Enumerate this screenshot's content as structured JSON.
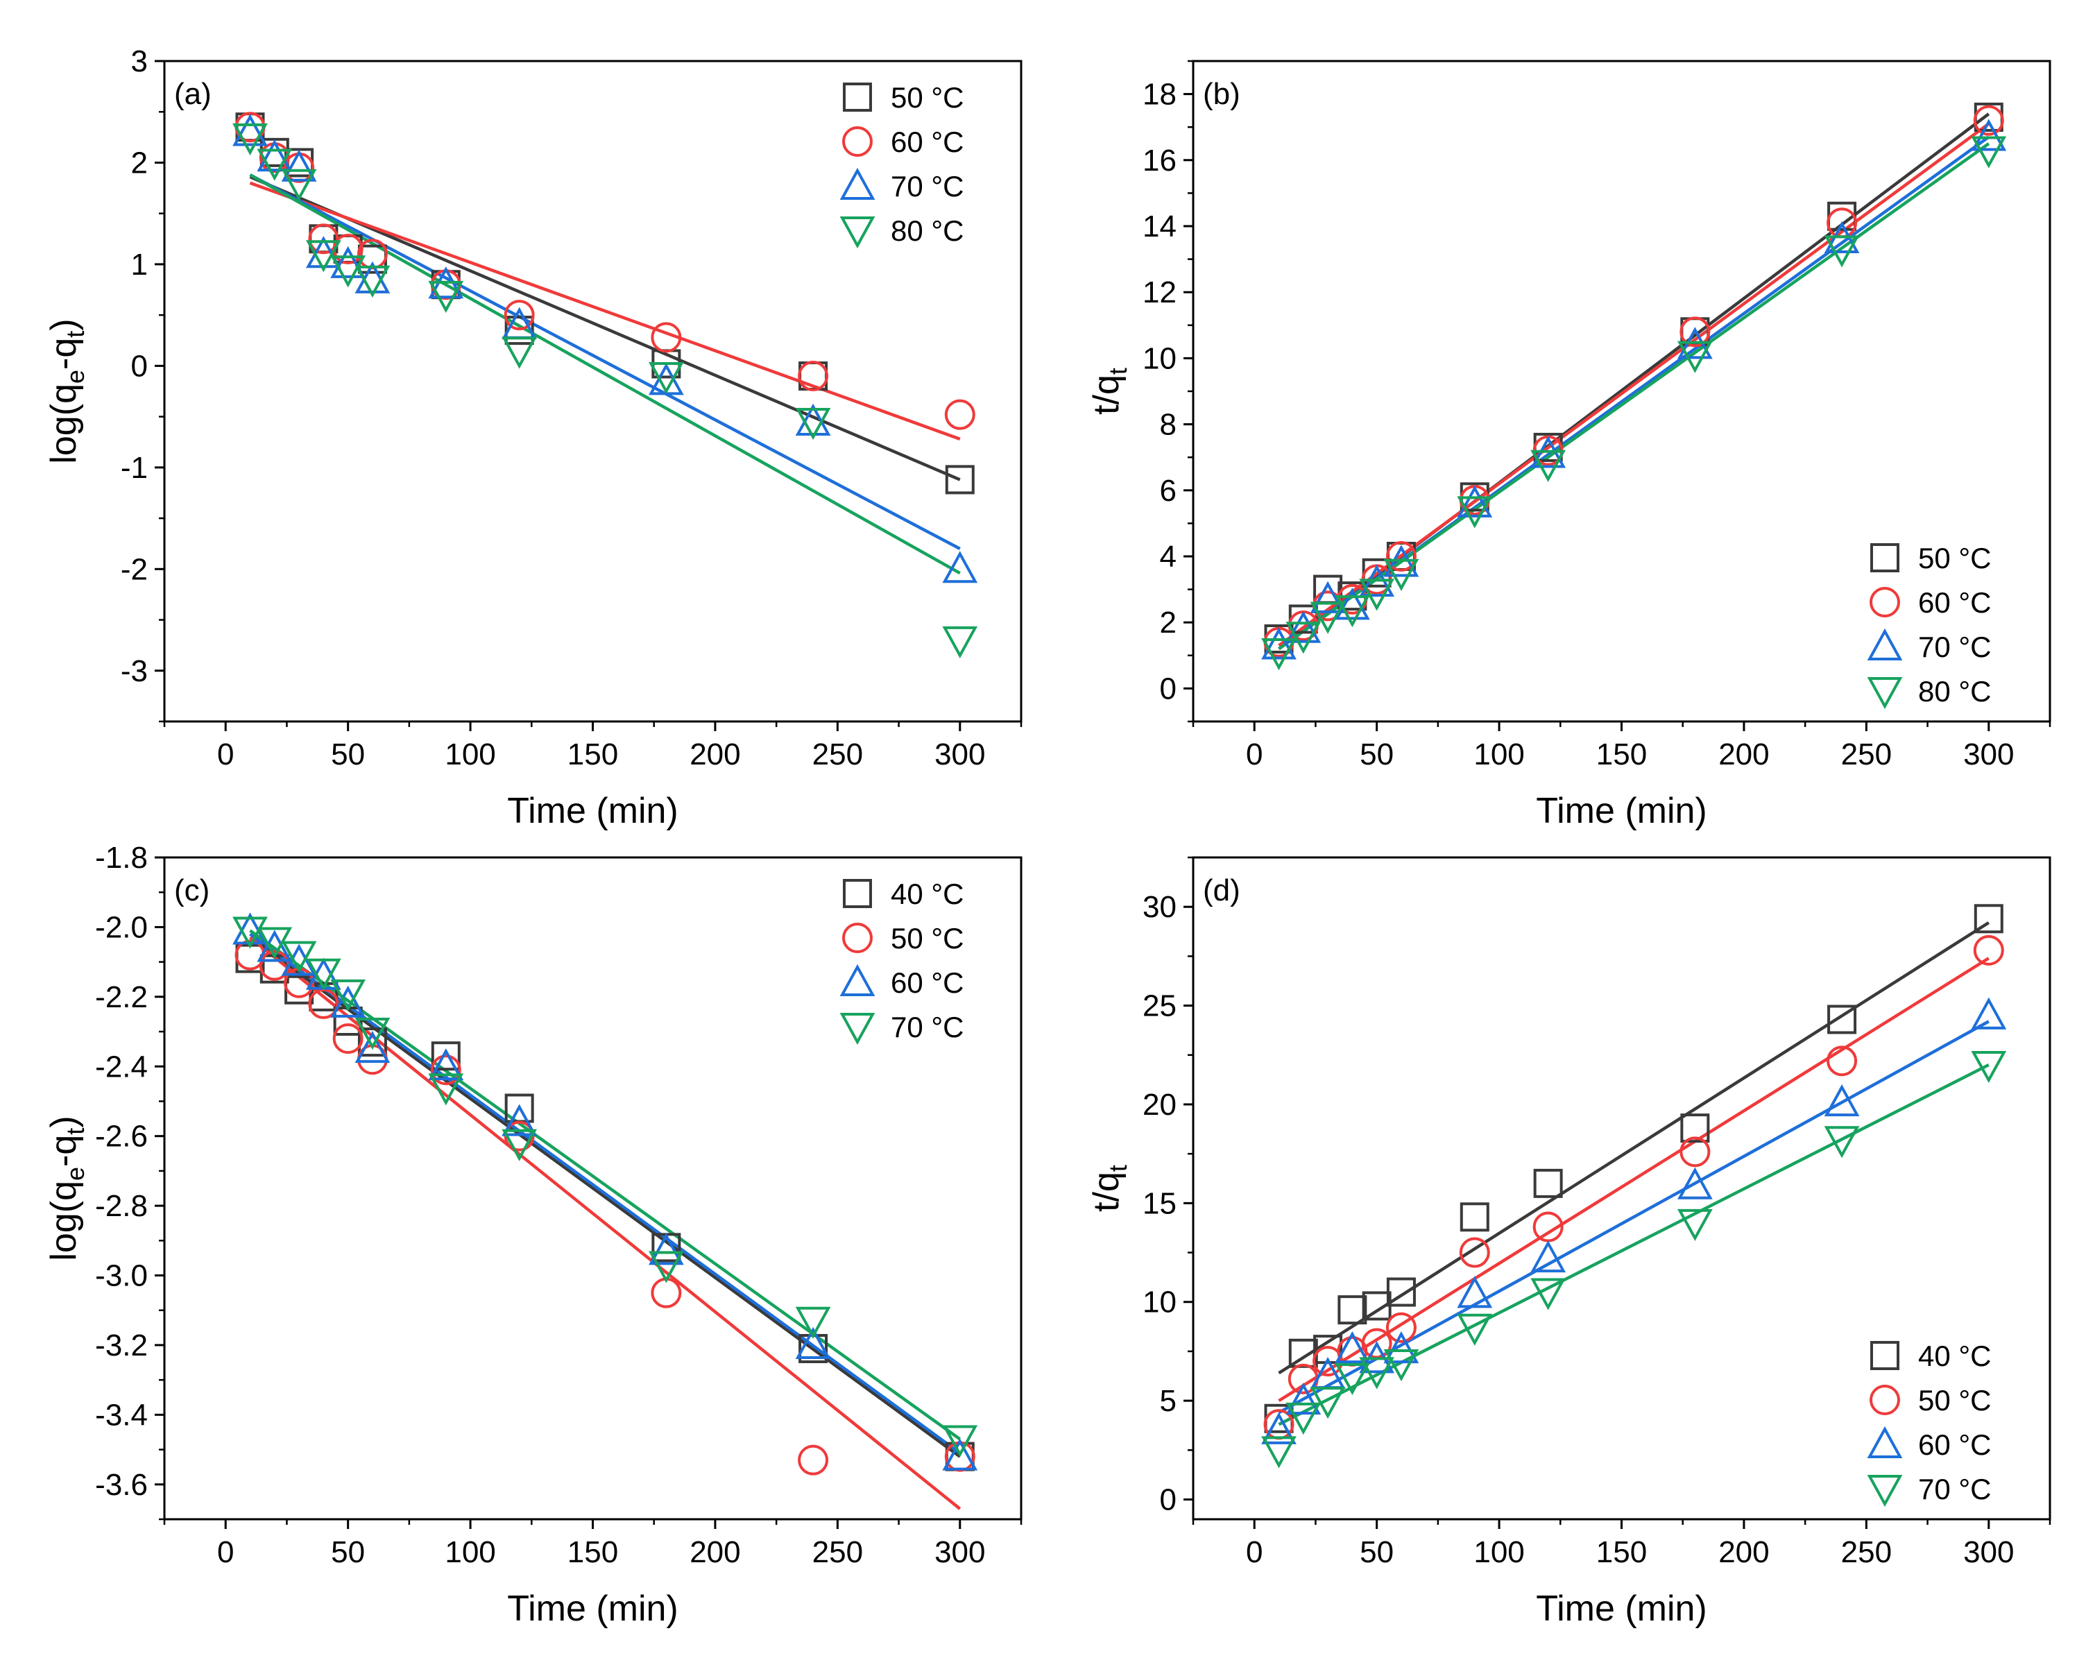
{
  "figure": {
    "panel_count": 4
  },
  "chart_data": [
    {
      "panel_label": "(a)",
      "type": "scatter",
      "xlabel": "Time (min)",
      "ylabel": {
        "base": "log(q",
        "sub1": "e",
        "mid": "-q",
        "sub2": "t",
        "end": ")"
      },
      "xlim": [
        -25,
        325
      ],
      "ylim": [
        -3.5,
        3
      ],
      "xticks": [
        0,
        50,
        100,
        150,
        200,
        250,
        300
      ],
      "xtick_labels": [
        "0",
        "50",
        "100",
        "150",
        "200",
        "250",
        "300"
      ],
      "yticks": [
        -3,
        -2,
        -1,
        0,
        1,
        2,
        3
      ],
      "ytick_labels": [
        "-3",
        "-2",
        "-1",
        "0",
        "1",
        "2",
        "3"
      ],
      "y_minor_step": 0.5,
      "legend_position": "top-right",
      "x": [
        10,
        20,
        30,
        40,
        50,
        60,
        90,
        120,
        180,
        240,
        300
      ],
      "series": [
        {
          "name": "50 °C",
          "label_num": "50",
          "label_unit": "°C",
          "marker": "square",
          "color": "#3a3a3a",
          "values": [
            2.35,
            2.1,
            2.0,
            1.25,
            1.15,
            1.05,
            0.8,
            0.35,
            0.02,
            -0.1,
            -1.12
          ],
          "fit": [
            1.86,
            -1.12
          ]
        },
        {
          "name": "60 °C",
          "label_num": "60",
          "label_unit": "°C",
          "marker": "circle",
          "color": "#f03a3a",
          "values": [
            2.35,
            2.05,
            1.95,
            1.25,
            1.15,
            1.1,
            0.8,
            0.5,
            0.28,
            -0.1,
            -0.48
          ],
          "fit": [
            1.8,
            -0.72
          ]
        },
        {
          "name": "70 °C",
          "label_num": "70",
          "label_unit": "°C",
          "marker": "triangle-up",
          "color": "#1e6fd9",
          "values": [
            2.3,
            2.05,
            1.95,
            1.1,
            1.0,
            0.85,
            0.8,
            0.4,
            -0.15,
            -0.55,
            -2.0
          ],
          "fit": [
            1.88,
            -1.8
          ]
        },
        {
          "name": "80 °C",
          "label_num": "80",
          "label_unit": "°C",
          "marker": "triangle-down",
          "color": "#17a35e",
          "values": [
            2.25,
            2.0,
            1.8,
            1.1,
            0.95,
            0.85,
            0.7,
            0.15,
            -0.1,
            -0.55,
            -2.7
          ],
          "fit": [
            1.88,
            -2.04
          ]
        }
      ]
    },
    {
      "panel_label": "(b)",
      "type": "scatter",
      "xlabel": "Time (min)",
      "ylabel": {
        "base": "t/q",
        "sub1": "t",
        "mid": "",
        "sub2": "",
        "end": ""
      },
      "xlim": [
        -25,
        325
      ],
      "ylim": [
        -1,
        19
      ],
      "xticks": [
        0,
        50,
        100,
        150,
        200,
        250,
        300
      ],
      "xtick_labels": [
        "0",
        "50",
        "100",
        "150",
        "200",
        "250",
        "300"
      ],
      "yticks": [
        0,
        2,
        4,
        6,
        8,
        10,
        12,
        14,
        16,
        18
      ],
      "ytick_labels": [
        "0",
        "2",
        "4",
        "6",
        "8",
        "10",
        "12",
        "14",
        "16",
        "18"
      ],
      "y_minor_step": 1,
      "legend_position": "bottom-right",
      "x": [
        10,
        20,
        30,
        40,
        50,
        60,
        90,
        120,
        180,
        240,
        300
      ],
      "series": [
        {
          "name": "50 °C",
          "label_num": "50",
          "label_unit": "°C",
          "marker": "square",
          "color": "#3a3a3a",
          "values": [
            1.5,
            2.1,
            3.0,
            2.8,
            3.5,
            4.0,
            5.8,
            7.3,
            10.8,
            14.3,
            17.3
          ],
          "fit": [
            1.2,
            17.4
          ]
        },
        {
          "name": "60 °C",
          "label_num": "60",
          "label_unit": "°C",
          "marker": "circle",
          "color": "#f03a3a",
          "values": [
            1.4,
            1.9,
            2.5,
            2.7,
            3.3,
            4.0,
            5.7,
            7.2,
            10.8,
            14.1,
            17.2
          ],
          "fit": [
            1.3,
            17.1
          ]
        },
        {
          "name": "70 °C",
          "label_num": "70",
          "label_unit": "°C",
          "marker": "triangle-up",
          "color": "#1e6fd9",
          "values": [
            1.3,
            1.8,
            2.7,
            2.5,
            3.2,
            3.8,
            5.6,
            7.1,
            10.4,
            13.6,
            16.7
          ],
          "fit": [
            1.2,
            16.7
          ]
        },
        {
          "name": "80 °C",
          "label_num": "80",
          "label_unit": "°C",
          "marker": "triangle-down",
          "color": "#17a35e",
          "values": [
            1.1,
            1.6,
            2.2,
            2.4,
            2.9,
            3.5,
            5.4,
            6.8,
            10.1,
            13.3,
            16.3
          ],
          "fit": [
            1.2,
            16.5
          ]
        }
      ]
    },
    {
      "panel_label": "(c)",
      "type": "scatter",
      "xlabel": "Time (min)",
      "ylabel": {
        "base": "log(q",
        "sub1": "e",
        "mid": "-q",
        "sub2": "t",
        "end": ")"
      },
      "xlim": [
        -25,
        325
      ],
      "ylim": [
        -3.7,
        -1.8
      ],
      "xticks": [
        0,
        50,
        100,
        150,
        200,
        250,
        300
      ],
      "xtick_labels": [
        "0",
        "50",
        "100",
        "150",
        "200",
        "250",
        "300"
      ],
      "yticks": [
        -3.6,
        -3.4,
        -3.2,
        -3.0,
        -2.8,
        -2.6,
        -2.4,
        -2.2,
        -2.0,
        -1.8
      ],
      "ytick_labels": [
        "-3.6",
        "-3.4",
        "-3.2",
        "-3.0",
        "-2.8",
        "-2.6",
        "-2.4",
        "-2.2",
        "-2.0",
        "-1.8"
      ],
      "y_minor_step": 0.1,
      "legend_position": "top-right",
      "x": [
        10,
        20,
        30,
        40,
        50,
        60,
        90,
        120,
        180,
        240,
        300
      ],
      "series": [
        {
          "name": "40 °C",
          "label_num": "40",
          "label_unit": "°C",
          "marker": "square",
          "color": "#3a3a3a",
          "values": [
            -2.09,
            -2.12,
            -2.18,
            -2.2,
            -2.27,
            -2.33,
            -2.37,
            -2.52,
            -2.92,
            -3.21,
            -3.52
          ],
          "fit": [
            -2.03,
            -3.52
          ]
        },
        {
          "name": "50 °C",
          "label_num": "50",
          "label_unit": "°C",
          "marker": "circle",
          "color": "#f03a3a",
          "values": [
            -2.08,
            -2.11,
            -2.16,
            -2.22,
            -2.32,
            -2.38,
            -2.41,
            -2.6,
            -3.05,
            -3.53,
            -3.52
          ],
          "fit": [
            -2.03,
            -3.67
          ]
        },
        {
          "name": "60 °C",
          "label_num": "60",
          "label_unit": "°C",
          "marker": "triangle-up",
          "color": "#1e6fd9",
          "values": [
            -2.01,
            -2.06,
            -2.1,
            -2.14,
            -2.22,
            -2.35,
            -2.4,
            -2.56,
            -2.93,
            -3.2,
            -3.52
          ],
          "fit": [
            -2.02,
            -3.51
          ]
        },
        {
          "name": "70 °C",
          "label_num": "70",
          "label_unit": "°C",
          "marker": "triangle-down",
          "color": "#17a35e",
          "values": [
            -2.01,
            -2.04,
            -2.08,
            -2.13,
            -2.19,
            -2.3,
            -2.46,
            -2.62,
            -2.97,
            -3.13,
            -3.47
          ],
          "fit": [
            -2.01,
            -3.47
          ]
        }
      ]
    },
    {
      "panel_label": "(d)",
      "type": "scatter",
      "xlabel": "Time (min)",
      "ylabel": {
        "base": "t/q",
        "sub1": "t",
        "mid": "",
        "sub2": "",
        "end": ""
      },
      "xlim": [
        -25,
        325
      ],
      "ylim": [
        -1,
        32.5
      ],
      "xticks": [
        0,
        50,
        100,
        150,
        200,
        250,
        300
      ],
      "xtick_labels": [
        "0",
        "50",
        "100",
        "150",
        "200",
        "250",
        "300"
      ],
      "yticks": [
        0,
        5,
        10,
        15,
        20,
        25,
        30
      ],
      "ytick_labels": [
        "0",
        "5",
        "10",
        "15",
        "20",
        "25",
        "30"
      ],
      "y_minor_step": 2.5,
      "legend_position": "bottom-right",
      "x": [
        10,
        20,
        30,
        40,
        50,
        60,
        90,
        120,
        180,
        240,
        300
      ],
      "series": [
        {
          "name": "40 °C",
          "label_num": "40",
          "label_unit": "°C",
          "marker": "square",
          "color": "#3a3a3a",
          "values": [
            4.1,
            7.4,
            7.6,
            9.6,
            9.8,
            10.5,
            14.3,
            16.0,
            18.8,
            24.3,
            29.4
          ],
          "fit": [
            6.4,
            29.2
          ]
        },
        {
          "name": "50 °C",
          "label_num": "50",
          "label_unit": "°C",
          "marker": "circle",
          "color": "#f03a3a",
          "values": [
            3.8,
            6.1,
            7.0,
            7.5,
            7.9,
            8.7,
            12.5,
            13.8,
            17.6,
            22.2,
            27.8
          ],
          "fit": [
            5.0,
            27.4
          ]
        },
        {
          "name": "60 °C",
          "label_num": "60",
          "label_unit": "°C",
          "marker": "triangle-up",
          "color": "#1e6fd9",
          "values": [
            3.5,
            5.0,
            6.3,
            7.6,
            7.1,
            7.6,
            10.4,
            12.2,
            15.9,
            20.1,
            24.5
          ],
          "fit": [
            4.4,
            24.2
          ]
        },
        {
          "name": "70 °C",
          "label_num": "70",
          "label_unit": "°C",
          "marker": "triangle-down",
          "color": "#17a35e",
          "values": [
            2.5,
            4.2,
            5.0,
            6.2,
            6.5,
            6.9,
            8.7,
            10.5,
            14.0,
            18.2,
            22.0
          ],
          "fit": [
            3.8,
            22.0
          ]
        }
      ]
    }
  ]
}
